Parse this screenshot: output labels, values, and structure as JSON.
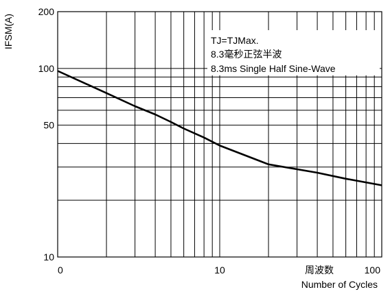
{
  "chart_data": {
    "type": "line",
    "title": "",
    "xlabel": "Number of Cycles",
    "xlabel_cn": "周波数",
    "ylabel": "IFSM(A)",
    "x_scale": "log",
    "y_scale": "log",
    "xlim": [
      1,
      100
    ],
    "ylim": [
      10,
      200
    ],
    "grid": true,
    "legend": "none",
    "x_tick_labels": [
      "0",
      "10",
      "100"
    ],
    "y_tick_labels": [
      "200",
      "100",
      "50",
      "10"
    ],
    "x_tick_values": [
      1,
      10,
      100
    ],
    "y_tick_values": [
      200,
      100,
      50,
      10
    ],
    "series": [
      {
        "x": [
          1,
          2,
          3,
          4,
          5,
          6,
          8,
          10,
          20,
          40,
          60,
          100
        ],
        "values": [
          97,
          74,
          63,
          57,
          52,
          48,
          43,
          39,
          31,
          28,
          26,
          24
        ]
      }
    ],
    "annotations": [
      "TJ=TJMax.",
      "8.3毫秒正弦半波",
      "8.3ms Single Half Sine-Wave"
    ],
    "colors": {
      "line": "#000000",
      "grid": "#000000",
      "background": "#ffffff"
    }
  }
}
